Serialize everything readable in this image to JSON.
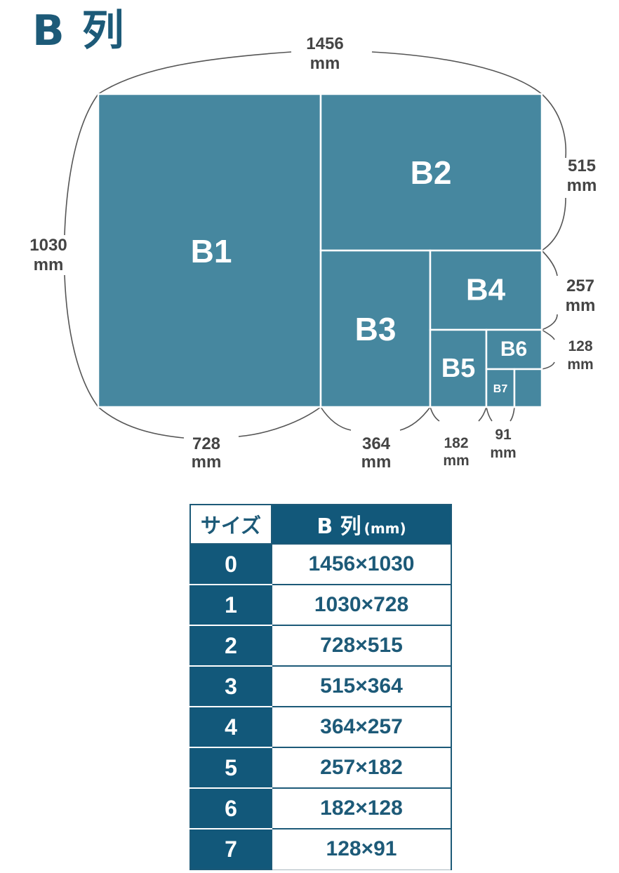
{
  "title": "B 列",
  "diagram": {
    "boxes": [
      "B1",
      "B2",
      "B3",
      "B4",
      "B5",
      "B6",
      "B7"
    ],
    "dimensions": {
      "top_width": {
        "value": "1456",
        "unit": "mm"
      },
      "left_height": {
        "value": "1030",
        "unit": "mm"
      },
      "right_515": {
        "value": "515",
        "unit": "mm"
      },
      "right_257": {
        "value": "257",
        "unit": "mm"
      },
      "right_128": {
        "value": "128",
        "unit": "mm"
      },
      "bottom_728": {
        "value": "728",
        "unit": "mm"
      },
      "bottom_364": {
        "value": "364",
        "unit": "mm"
      },
      "bottom_182": {
        "value": "182",
        "unit": "mm"
      },
      "bottom_91": {
        "value": "91",
        "unit": "mm"
      }
    },
    "colors": {
      "box_fill": "#46879f",
      "box_border": "#ffffff",
      "brand": "#1d5a78"
    }
  },
  "table": {
    "header_size": "サイズ",
    "header_series": "B 列",
    "header_unit": "(mm)",
    "rows": [
      {
        "size": "0",
        "dimensions": "1456×1030"
      },
      {
        "size": "1",
        "dimensions": "1030×728"
      },
      {
        "size": "2",
        "dimensions": "728×515"
      },
      {
        "size": "3",
        "dimensions": "515×364"
      },
      {
        "size": "4",
        "dimensions": "364×257"
      },
      {
        "size": "5",
        "dimensions": "257×182"
      },
      {
        "size": "6",
        "dimensions": "182×128"
      },
      {
        "size": "7",
        "dimensions": "128×91"
      }
    ]
  }
}
